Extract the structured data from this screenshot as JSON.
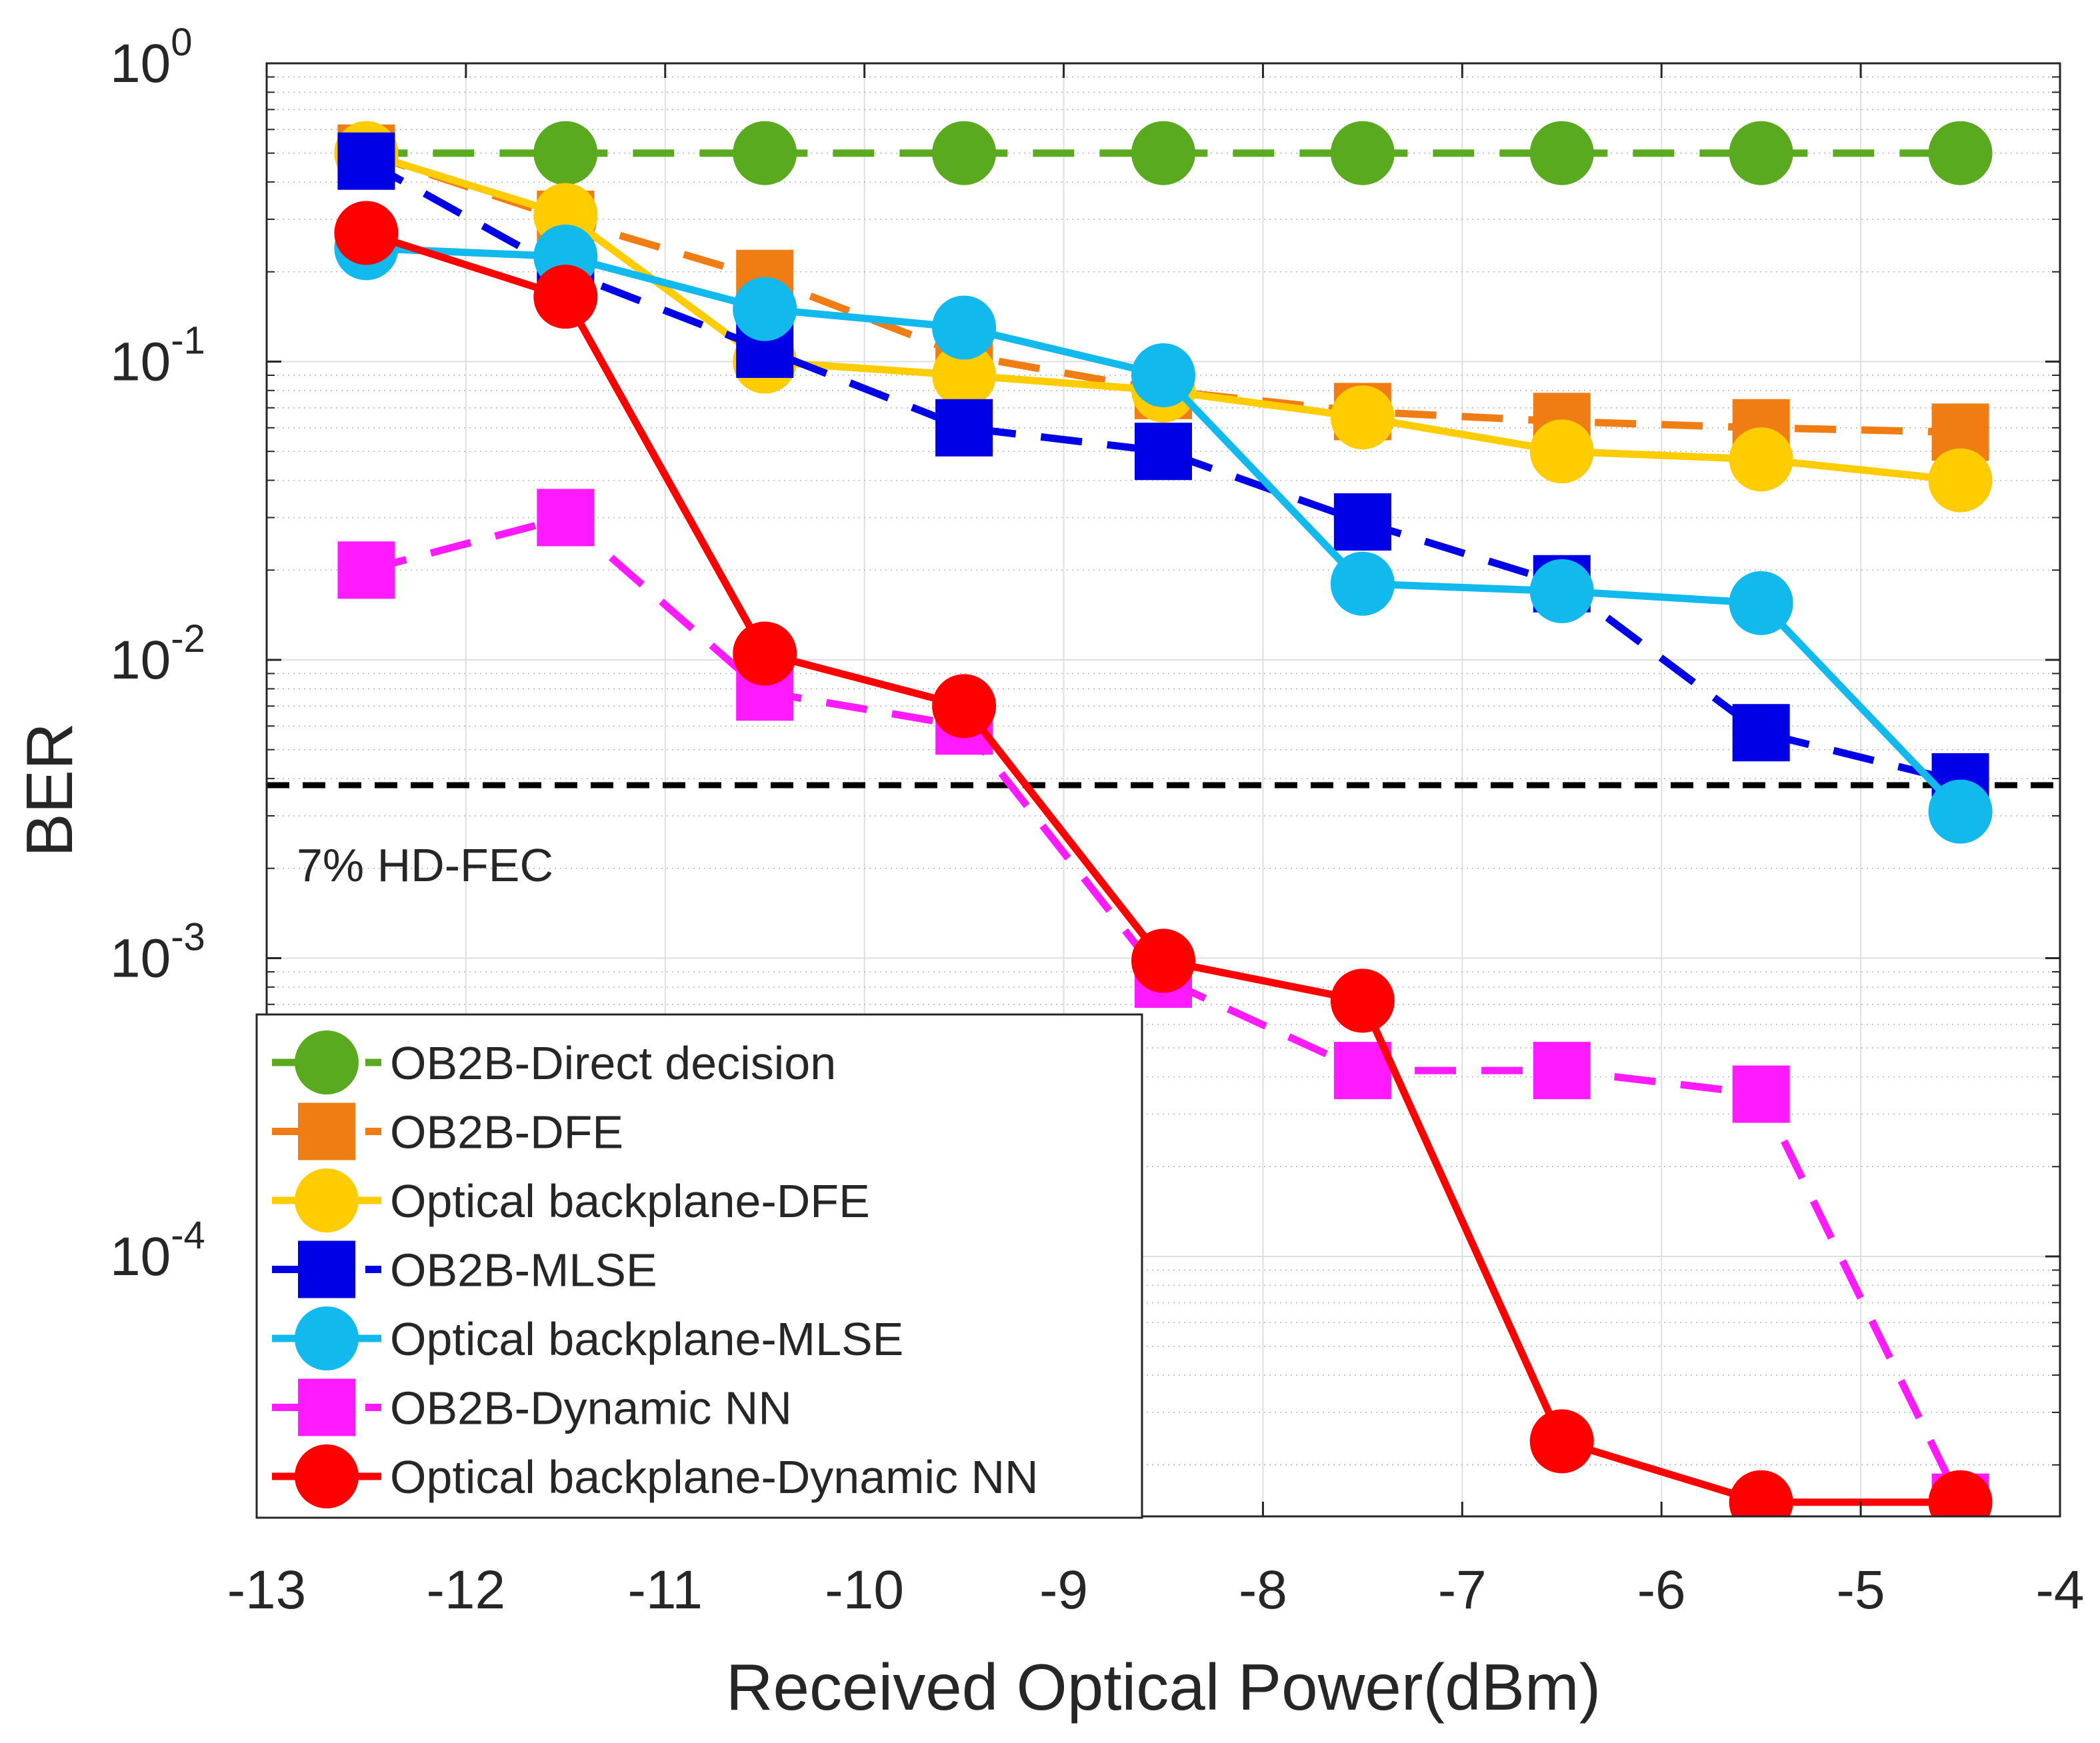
{
  "chart_data": {
    "type": "line",
    "title": "",
    "xlabel": "Received Optical Power(dBm)",
    "ylabel": "BER",
    "xlim": [
      -13,
      -4
    ],
    "ylim": [
      1.5e-05,
      1
    ],
    "yscale": "log",
    "grid": true,
    "x_ticks": [
      -13,
      -12,
      -11,
      -10,
      -9,
      -8,
      -7,
      -6,
      -5,
      -4
    ],
    "x_tick_labels": [
      "-13",
      "-12",
      "-11",
      "-10",
      "-9",
      "-8",
      "-7",
      "-6",
      "-5",
      "-4"
    ],
    "y_ticks": [
      {
        "value": 1,
        "base": "10",
        "exp": "0"
      },
      {
        "value": 0.1,
        "base": "10",
        "exp": "-1"
      },
      {
        "value": 0.01,
        "base": "10",
        "exp": "-2"
      },
      {
        "value": 0.001,
        "base": "10",
        "exp": "-3"
      },
      {
        "value": 0.0001,
        "base": "10",
        "exp": "-4"
      }
    ],
    "x": [
      -12.5,
      -11.5,
      -10.5,
      -9.5,
      -8.5,
      -7.5,
      -6.5,
      -5.5,
      -4.5
    ],
    "threshold": {
      "value": 0.0038,
      "label": "7% HD-FEC",
      "color": "#000000"
    },
    "legend_position": "bottom-left",
    "series": [
      {
        "name": "OB2B-Direct decision",
        "color": "#5aaa1f",
        "marker": "circle",
        "dash": "dashed",
        "values": [
          0.5,
          0.5,
          0.5,
          0.5,
          0.5,
          0.5,
          0.5,
          0.5,
          0.5
        ]
      },
      {
        "name": "OB2B-DFE",
        "color": "#f07d14",
        "marker": "square",
        "dash": "dashed",
        "values": [
          0.5,
          0.3,
          0.19,
          0.105,
          0.08,
          0.068,
          0.063,
          0.06,
          0.058
        ]
      },
      {
        "name": "Optical backplane-DFE",
        "color": "#ffcc00",
        "marker": "circle",
        "dash": "solid",
        "values": [
          0.5,
          0.31,
          0.1,
          0.09,
          0.08,
          0.065,
          0.05,
          0.047,
          0.04
        ]
      },
      {
        "name": "OB2B-MLSE",
        "color": "#0000e6",
        "marker": "square",
        "dash": "dashed",
        "values": [
          0.47,
          0.2,
          0.11,
          0.06,
          0.05,
          0.029,
          0.018,
          0.0057,
          0.0039
        ]
      },
      {
        "name": "Optical backplane-MLSE",
        "color": "#12b9ec",
        "marker": "circle",
        "dash": "solid",
        "values": [
          0.24,
          0.225,
          0.15,
          0.13,
          0.09,
          0.018,
          0.017,
          0.0155,
          0.0031
        ]
      },
      {
        "name": "OB2B-Dynamic NN",
        "color": "#ff1aff",
        "marker": "square",
        "dash": "dashed",
        "values": [
          0.02,
          0.03,
          0.0078,
          0.006,
          0.00085,
          0.00042,
          0.00042,
          0.00035,
          1.5e-05
        ]
      },
      {
        "name": "Optical backplane-Dynamic NN",
        "color": "#ff0000",
        "marker": "circle",
        "dash": "solid",
        "values": [
          0.27,
          0.165,
          0.0105,
          0.007,
          0.00098,
          0.00072,
          2.4e-05,
          1.5e-05,
          1.5e-05
        ]
      }
    ]
  }
}
